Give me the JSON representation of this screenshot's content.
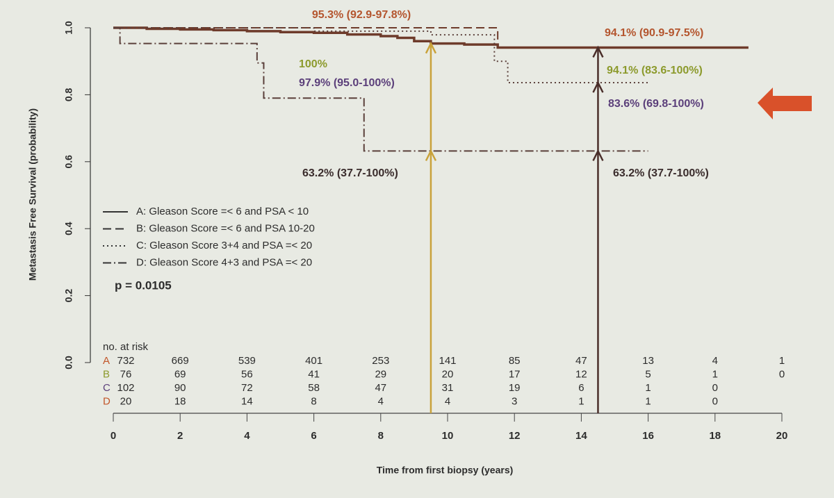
{
  "chart_data": {
    "type": "line",
    "step": true,
    "y_label": "Metastasis Free Survival (probability)",
    "x_label": "Time from first biopsy (years)",
    "xlim": [
      0,
      20
    ],
    "xticks": [
      0,
      2,
      4,
      6,
      8,
      10,
      12,
      14,
      16,
      18,
      20
    ],
    "ylim": [
      0,
      1
    ],
    "yticks": [
      {
        "value": 0,
        "label": "0.0"
      },
      0.2,
      0.4,
      0.6,
      0.8,
      {
        "value": 1,
        "label": "1.0"
      }
    ],
    "legend": "left",
    "series": [
      {
        "name": "A: Gleason Score =< 6 and PSA < 10",
        "color": "#6e3b2b",
        "dash": "solid",
        "x": [
          0,
          1,
          2,
          3,
          4,
          5,
          6,
          7,
          8,
          8.5,
          9,
          9.5,
          10.5,
          11.5,
          19
        ],
        "values": [
          1,
          0.997,
          0.995,
          0.993,
          0.99,
          0.987,
          0.985,
          0.98,
          0.975,
          0.97,
          0.96,
          0.953,
          0.95,
          0.941,
          0.941
        ]
      },
      {
        "name": "B: Gleason Score =< 6 and PSA 10-20",
        "color": "#6e3b2b",
        "dash": "dashed",
        "x": [
          0,
          11.5,
          16
        ],
        "values": [
          1,
          0.941,
          0.941
        ]
      },
      {
        "name": "C: Gleason Score 3+4 and PSA =< 20",
        "color": "#5a3f3a",
        "dash": "dotted",
        "x": [
          0,
          6,
          9.5,
          11.4,
          11.8,
          16
        ],
        "values": [
          1,
          0.99,
          0.979,
          0.9,
          0.836,
          0.836
        ]
      },
      {
        "name": "D: Gleason Score 4+3 and PSA =< 20",
        "color": "#5a3f3a",
        "dash": "dashdot",
        "x": [
          0,
          0.2,
          4.3,
          4.5,
          7.5,
          16
        ],
        "values": [
          1,
          0.953,
          0.895,
          0.79,
          0.632,
          0.632
        ]
      }
    ],
    "p_value": "p = 0.0105",
    "annotations": [
      {
        "text": "95.3% (92.9-97.8%)",
        "x": 9.5,
        "y": 0.953,
        "color": "#b4552e",
        "arrow": true
      },
      {
        "text": "100%",
        "x": 9.5,
        "y": 1,
        "color": "#8c9a2c",
        "arrow": false
      },
      {
        "text": "97.9% (95.0-100%)",
        "x": 9.5,
        "y": 0.979,
        "color": "#5b3f7a",
        "arrow": false
      },
      {
        "text": "63.2% (37.7-100%)",
        "x": 9.5,
        "y": 0.632,
        "color": "#3a2c2c",
        "arrow": true
      },
      {
        "text": "94.1% (90.9-97.5%)",
        "x": 14.5,
        "y": 0.941,
        "color": "#b4552e",
        "arrow": true
      },
      {
        "text": "94.1% (83.6-100%)",
        "x": 14.5,
        "y": 0.941,
        "color": "#8c9a2c",
        "arrow": false
      },
      {
        "text": "83.6% (69.8-100%)",
        "x": 14.5,
        "y": 0.836,
        "color": "#5b3f7a",
        "arrow": true
      },
      {
        "text": "63.2% (37.7-100%)",
        "x": 14.5,
        "y": 0.632,
        "color": "#3a2c2c",
        "arrow": true
      }
    ],
    "reference_lines": [
      {
        "x": 9.5,
        "color": "#c9a23a"
      },
      {
        "x": 14.5,
        "color": "#4a2e2a"
      }
    ],
    "risk_table": {
      "title": "no. at risk",
      "rows": [
        {
          "label": "A",
          "color": "#c2562a",
          "counts": [
            732,
            669,
            539,
            401,
            253,
            141,
            85,
            47,
            13,
            4,
            1
          ]
        },
        {
          "label": "B",
          "color": "#8c9a2c",
          "counts": [
            76,
            69,
            56,
            41,
            29,
            20,
            17,
            12,
            5,
            1,
            0
          ]
        },
        {
          "label": "C",
          "color": "#5b3f7a",
          "counts": [
            102,
            90,
            72,
            58,
            47,
            31,
            19,
            6,
            1,
            0,
            null
          ]
        },
        {
          "label": "D",
          "color": "#c2562a",
          "counts": [
            20,
            18,
            14,
            8,
            4,
            4,
            3,
            1,
            1,
            0,
            null
          ]
        }
      ]
    }
  }
}
